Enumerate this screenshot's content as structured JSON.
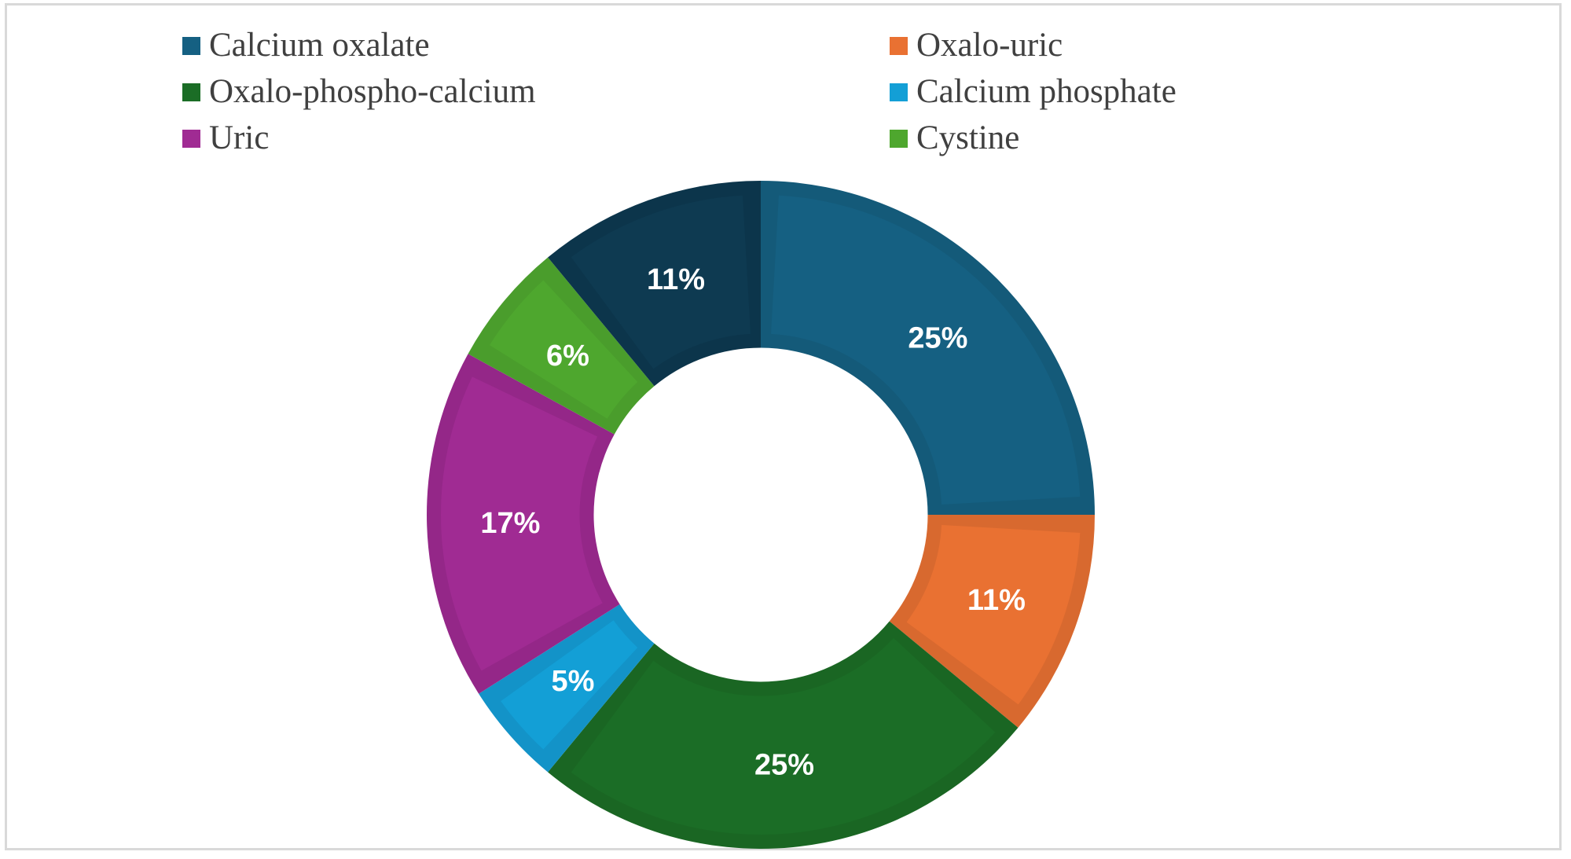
{
  "chart_data": {
    "type": "pie",
    "subtype": "donut",
    "title": "",
    "start_angle_deg": 0,
    "direction": "clockwise",
    "inner_radius_ratio": 0.5,
    "legend_position": "top",
    "slices": [
      {
        "label": "Calcium oxalate",
        "value": 25,
        "display": "25%",
        "color": "#156082",
        "border": "#145a79"
      },
      {
        "label": "Oxalo-uric",
        "value": 11,
        "display": "11%",
        "color": "#e97132",
        "border": "#d8692f"
      },
      {
        "label": "Oxalo-phospho-calcium",
        "value": 25,
        "display": "25%",
        "color": "#1b6d26",
        "border": "#1a6623"
      },
      {
        "label": "Calcium phosphate",
        "value": 5,
        "display": "5%",
        "color": "#139fd6",
        "border": "#1393c8"
      },
      {
        "label": "Uric",
        "value": 17,
        "display": "17%",
        "color": "#a02b93",
        "border": "#942788"
      },
      {
        "label": "Cystine",
        "value": 6,
        "display": "6%",
        "color": "#4ea72e",
        "border": "#4a9d2c"
      },
      {
        "label": "",
        "value": 11,
        "display": "11%",
        "color": "#0e3a51",
        "border": "#0c354b"
      }
    ],
    "legend": [
      {
        "label": "Calcium oxalate",
        "color": "#156082"
      },
      {
        "label": "Oxalo-uric",
        "color": "#e97132"
      },
      {
        "label": "Oxalo-phospho-calcium",
        "color": "#1b6d26"
      },
      {
        "label": "Calcium phosphate",
        "color": "#139fd6"
      },
      {
        "label": "Uric",
        "color": "#a02b93"
      },
      {
        "label": "Cystine",
        "color": "#4ea72e"
      }
    ]
  },
  "legend": {
    "items": [
      {
        "label": "Calcium oxalate",
        "color": "#156082"
      },
      {
        "label": "Oxalo-uric",
        "color": "#e97132"
      },
      {
        "label": "Oxalo-phospho-calcium",
        "color": "#1b6d26"
      },
      {
        "label": "Calcium phosphate",
        "color": "#139fd6"
      },
      {
        "label": "Uric",
        "color": "#a02b93"
      },
      {
        "label": "Cystine",
        "color": "#4ea72e"
      }
    ]
  },
  "colors": {
    "frame_border": "#d9d9d9",
    "legend_text": "#404040",
    "slice_label_text": "#ffffff"
  }
}
